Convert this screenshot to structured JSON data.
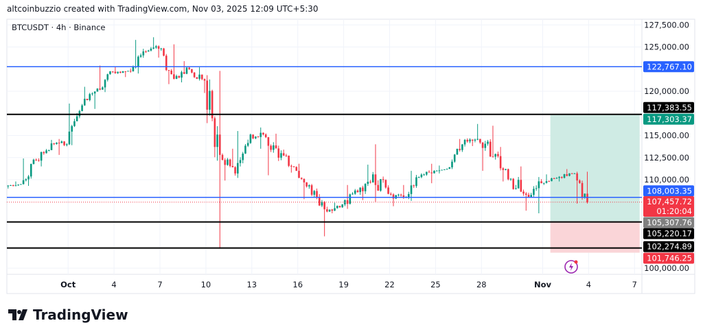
{
  "header": {
    "attribution": "altcoinbuzzio created with TradingView.com, Nov 03, 2025 12:09 UTC+5:30"
  },
  "logo": {
    "text": "TradingView"
  },
  "chart_data": {
    "type": "candlestick",
    "symbol_label": "BTCUSDT · 4h · Binance",
    "interval": "4h",
    "y_ticks": [
      "127,500.00",
      "125,000.00",
      "120,000.00",
      "115,000.00",
      "112,500.00",
      "110,000.00",
      "100,000.00"
    ],
    "y_tick_values": [
      127500,
      125000,
      120000,
      115000,
      112500,
      110000,
      100000
    ],
    "ylim": [
      99000,
      128500
    ],
    "x_ticks": [
      {
        "label": "Oct",
        "date": "2025-10-01",
        "bold": true
      },
      {
        "label": "4",
        "date": "2025-10-04"
      },
      {
        "label": "7",
        "date": "2025-10-07"
      },
      {
        "label": "10",
        "date": "2025-10-10"
      },
      {
        "label": "13",
        "date": "2025-10-13"
      },
      {
        "label": "16",
        "date": "2025-10-16"
      },
      {
        "label": "19",
        "date": "2025-10-19"
      },
      {
        "label": "22",
        "date": "2025-10-22"
      },
      {
        "label": "25",
        "date": "2025-10-25"
      },
      {
        "label": "28",
        "date": "2025-10-28"
      },
      {
        "label": "Nov",
        "date": "2025-11-01",
        "bold": true
      },
      {
        "label": "4",
        "date": "2025-11-04"
      },
      {
        "label": "7",
        "date": "2025-11-07"
      }
    ],
    "xlim": [
      "2025-09-27",
      "2025-11-08"
    ],
    "daily_ohlc": [
      [
        "2025-09-27",
        109300,
        109800,
        109000,
        109500
      ],
      [
        "2025-09-28",
        109500,
        112400,
        109300,
        112200
      ],
      [
        "2025-09-29",
        112200,
        114500,
        111500,
        114100
      ],
      [
        "2025-09-30",
        114100,
        114600,
        112800,
        114000
      ],
      [
        "2025-10-01",
        114000,
        118600,
        113900,
        118400
      ],
      [
        "2025-10-02",
        118400,
        120500,
        118000,
        120300
      ],
      [
        "2025-10-03",
        120300,
        122900,
        119900,
        122200
      ],
      [
        "2025-10-04",
        122200,
        122800,
        121600,
        122300
      ],
      [
        "2025-10-05",
        122300,
        125800,
        122000,
        124500
      ],
      [
        "2025-10-06",
        124500,
        126100,
        123800,
        124800
      ],
      [
        "2025-10-07",
        124800,
        125300,
        120800,
        121400
      ],
      [
        "2025-10-08",
        121400,
        123400,
        121000,
        122500
      ],
      [
        "2025-10-09",
        122500,
        122700,
        119800,
        121200
      ],
      [
        "2025-10-10",
        121200,
        122300,
        102200,
        112800
      ],
      [
        "2025-10-11",
        112800,
        113500,
        109900,
        110700
      ],
      [
        "2025-10-12",
        110700,
        115500,
        110200,
        115100
      ],
      [
        "2025-10-13",
        115100,
        115900,
        113500,
        114800
      ],
      [
        "2025-10-14",
        114800,
        115200,
        110500,
        113000
      ],
      [
        "2025-10-15",
        113000,
        113400,
        110800,
        111000
      ],
      [
        "2025-10-16",
        111000,
        111800,
        107800,
        108300
      ],
      [
        "2025-10-17",
        108300,
        109000,
        103600,
        106400
      ],
      [
        "2025-10-18",
        106400,
        107400,
        106200,
        107200
      ],
      [
        "2025-10-19",
        107200,
        109400,
        106700,
        108600
      ],
      [
        "2025-10-20",
        108600,
        111700,
        107700,
        110600
      ],
      [
        "2025-10-21",
        110600,
        114000,
        107500,
        108400
      ],
      [
        "2025-10-22",
        108400,
        109400,
        107000,
        108000
      ],
      [
        "2025-10-23",
        108000,
        111000,
        107600,
        110300
      ],
      [
        "2025-10-24",
        110300,
        111800,
        109600,
        111000
      ],
      [
        "2025-10-25",
        111000,
        111600,
        110700,
        111400
      ],
      [
        "2025-10-26",
        111400,
        114600,
        111200,
        114500
      ],
      [
        "2025-10-27",
        114500,
        116300,
        113800,
        114200
      ],
      [
        "2025-10-28",
        114200,
        116100,
        111000,
        112900
      ],
      [
        "2025-10-29",
        112900,
        113700,
        109800,
        110100
      ],
      [
        "2025-10-30",
        110100,
        111500,
        106500,
        108300
      ],
      [
        "2025-10-31",
        108300,
        110300,
        106200,
        109600
      ],
      [
        "2025-11-01",
        109600,
        110600,
        109400,
        110200
      ],
      [
        "2025-11-02",
        110200,
        111200,
        109800,
        110700
      ],
      [
        "2025-11-03",
        110700,
        110900,
        107300,
        107460
      ]
    ],
    "horizontal_lines": [
      {
        "price": 122767.1,
        "label": "122,767.10",
        "color": "#2962ff",
        "label_bg": "#2962ff"
      },
      {
        "price": 117383.55,
        "label": "117,383.55",
        "color": "#000000",
        "label_bg": "#000000"
      },
      {
        "price": 108003.35,
        "label": "108,003.35",
        "color": "#2962ff",
        "label_bg": "#2962ff"
      },
      {
        "price": 105220.17,
        "label": "105,220.17",
        "color": "#000000",
        "label_bg": "#000000"
      },
      {
        "price": 102274.89,
        "label": "102,274.89",
        "color": "#000000",
        "label_bg": "#000000"
      }
    ],
    "current_price": {
      "price": 107457.72,
      "label": "107,457.72",
      "countdown": "01:20:04",
      "color": "#f23645"
    },
    "position": {
      "start": "2025-11-01T12:00",
      "end": "2025-11-07T08:00",
      "target": 117303.37,
      "target_label": "117,303.37",
      "entry": 105307.76,
      "entry_label": "105,307.76",
      "stop": 101746.25,
      "stop_label": "101,746.25"
    },
    "colors": {
      "up": "#089981",
      "down": "#f23645",
      "target_zone": "#cfebe4",
      "stop_zone": "#fad5d8",
      "grid": "#f0f3fa",
      "entry_label": "#808080",
      "target_label": "#089981"
    }
  }
}
